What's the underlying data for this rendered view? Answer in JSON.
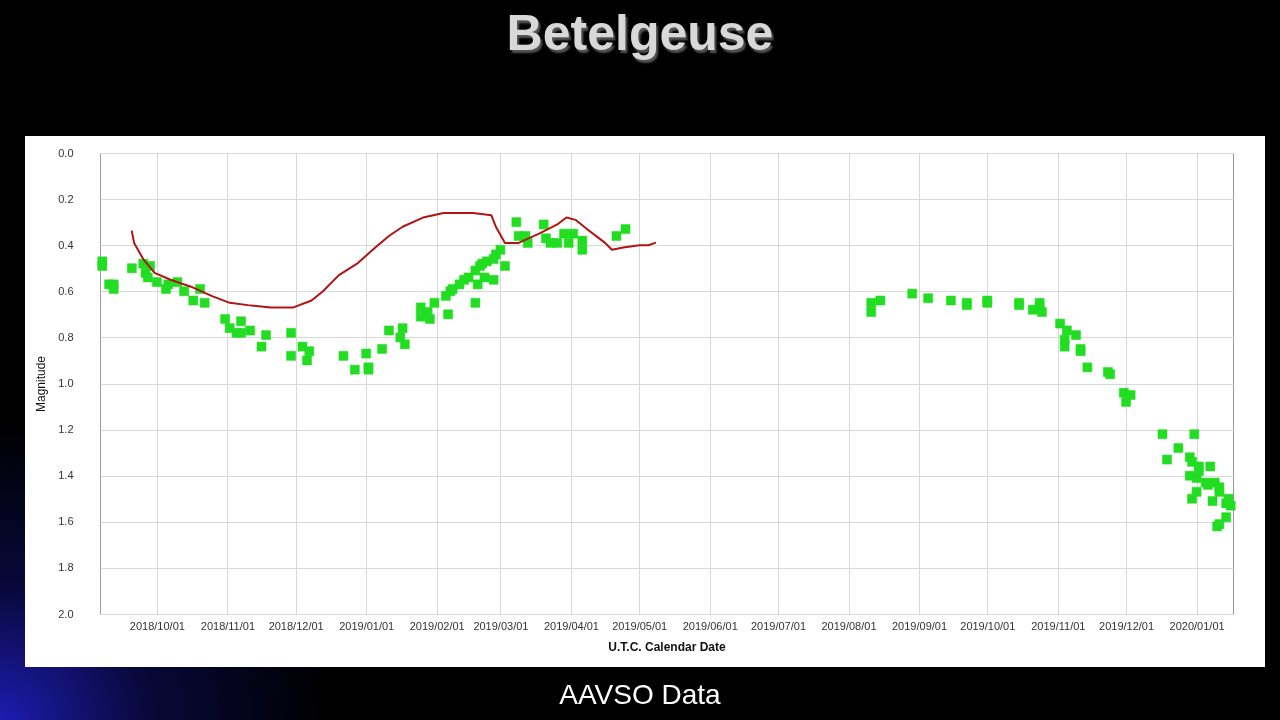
{
  "chart_data": {
    "type": "scatter",
    "title": "Betelgeuse",
    "xlabel": "U.T.C. Calendar Date",
    "ylabel": "Magnitude",
    "annotations": [
      "AAVSO Data"
    ],
    "xlim": [
      "2018-09-06",
      "2020-01-17"
    ],
    "xticks": [
      {
        "value": "2018-10-01",
        "label": "2018/10/01"
      },
      {
        "value": "2018-11-01",
        "label": "2018/11/01"
      },
      {
        "value": "2018-12-01",
        "label": "2018/12/01"
      },
      {
        "value": "2019-01-01",
        "label": "2019/01/01"
      },
      {
        "value": "2019-02-01",
        "label": "2019/02/01"
      },
      {
        "value": "2019-03-01",
        "label": "2019/03/01"
      },
      {
        "value": "2019-04-01",
        "label": "2019/04/01"
      },
      {
        "value": "2019-05-01",
        "label": "2019/05/01"
      },
      {
        "value": "2019-06-01",
        "label": "2019/06/01"
      },
      {
        "value": "2019-07-01",
        "label": "2019/07/01"
      },
      {
        "value": "2019-08-01",
        "label": "2019/08/01"
      },
      {
        "value": "2019-09-01",
        "label": "2019/09/01"
      },
      {
        "value": "2019-10-01",
        "label": "2019/10/01"
      },
      {
        "value": "2019-11-01",
        "label": "2019/11/01"
      },
      {
        "value": "2019-12-01",
        "label": "2019/12/01"
      },
      {
        "value": "2020-01-01",
        "label": "2020/01/01"
      }
    ],
    "ylim": [
      2.0,
      0.0
    ],
    "yticks": [
      {
        "value": 0,
        "label": "0.0"
      },
      0.2,
      0.4,
      0.6,
      0.8,
      {
        "value": 1,
        "label": "1.0"
      },
      1.2,
      1.4,
      1.6,
      1.8,
      {
        "value": 2,
        "label": "2.0"
      }
    ],
    "grid": true,
    "series": [
      {
        "color": "#22dd22",
        "marker": "square",
        "x": [
          "2018-09-07",
          "2018-09-07",
          "2018-09-10",
          "2018-09-12",
          "2018-09-12",
          "2018-09-20",
          "2018-09-25",
          "2018-09-26",
          "2018-09-27",
          "2018-09-28",
          "2018-10-01",
          "2018-10-05",
          "2018-10-06",
          "2018-10-10",
          "2018-10-13",
          "2018-10-17",
          "2018-10-20",
          "2018-10-22",
          "2018-10-31",
          "2018-11-02",
          "2018-11-05",
          "2018-11-07",
          "2018-11-07",
          "2018-11-11",
          "2018-11-16",
          "2018-11-18",
          "2018-11-29",
          "2018-11-29",
          "2018-12-04",
          "2018-12-06",
          "2018-12-07",
          "2018-12-22",
          "2018-12-27",
          "2019-01-01",
          "2019-01-02",
          "2019-01-02",
          "2019-01-08",
          "2019-01-11",
          "2019-01-16",
          "2019-01-17",
          "2019-01-18",
          "2019-01-25",
          "2019-01-25",
          "2019-01-28",
          "2019-01-29",
          "2019-01-31",
          "2019-02-05",
          "2019-02-06",
          "2019-02-07",
          "2019-02-08",
          "2019-02-11",
          "2019-02-13",
          "2019-02-15",
          "2019-02-18",
          "2019-02-18",
          "2019-02-19",
          "2019-02-20",
          "2019-02-21",
          "2019-02-22",
          "2019-02-23",
          "2019-02-26",
          "2019-02-26",
          "2019-02-27",
          "2019-03-01",
          "2019-03-03",
          "2019-03-08",
          "2019-03-09",
          "2019-03-12",
          "2019-03-13",
          "2019-03-20",
          "2019-03-21",
          "2019-03-23",
          "2019-03-26",
          "2019-03-29",
          "2019-03-31",
          "2019-04-02",
          "2019-04-06",
          "2019-04-06",
          "2019-04-21",
          "2019-04-25",
          "2019-08-11",
          "2019-08-11",
          "2019-08-15",
          "2019-08-29",
          "2019-09-05",
          "2019-09-15",
          "2019-09-22",
          "2019-09-22",
          "2019-10-01",
          "2019-10-01",
          "2019-10-15",
          "2019-10-15",
          "2019-10-21",
          "2019-10-24",
          "2019-10-24",
          "2019-10-25",
          "2019-11-02",
          "2019-11-04",
          "2019-11-04",
          "2019-11-05",
          "2019-11-09",
          "2019-11-11",
          "2019-11-11",
          "2019-11-14",
          "2019-11-23",
          "2019-11-24",
          "2019-11-30",
          "2019-12-01",
          "2019-12-03",
          "2019-12-17",
          "2019-12-19",
          "2019-12-24",
          "2019-12-29",
          "2019-12-29",
          "2019-12-30",
          "2019-12-30",
          "2019-12-31",
          "2020-01-01",
          "2020-01-01",
          "2020-01-02",
          "2020-01-02",
          "2020-01-05",
          "2020-01-06",
          "2020-01-07",
          "2020-01-08",
          "2020-01-09",
          "2020-01-10",
          "2020-01-11",
          "2020-01-11",
          "2020-01-11",
          "2020-01-14",
          "2020-01-14",
          "2020-01-15",
          "2020-01-16"
        ],
        "values": [
          0.47,
          0.49,
          0.57,
          0.57,
          0.59,
          0.5,
          0.48,
          0.52,
          0.54,
          0.49,
          0.56,
          0.59,
          0.57,
          0.56,
          0.6,
          0.64,
          0.59,
          0.65,
          0.72,
          0.76,
          0.78,
          0.73,
          0.78,
          0.77,
          0.84,
          0.79,
          0.78,
          0.88,
          0.84,
          0.9,
          0.86,
          0.88,
          0.94,
          0.87,
          0.93,
          0.94,
          0.85,
          0.77,
          0.8,
          0.76,
          0.83,
          0.67,
          0.71,
          0.69,
          0.72,
          0.65,
          0.62,
          0.7,
          0.6,
          0.59,
          0.57,
          0.55,
          0.54,
          0.51,
          0.65,
          0.57,
          0.49,
          0.48,
          0.54,
          0.47,
          0.46,
          0.55,
          0.44,
          0.42,
          0.49,
          0.3,
          0.36,
          0.36,
          0.39,
          0.31,
          0.37,
          0.39,
          0.39,
          0.35,
          0.39,
          0.35,
          0.38,
          0.42,
          0.36,
          0.33,
          0.65,
          0.69,
          0.64,
          0.61,
          0.63,
          0.64,
          0.65,
          0.66,
          0.64,
          0.65,
          0.65,
          0.66,
          0.68,
          0.65,
          0.67,
          0.69,
          0.74,
          0.81,
          0.84,
          0.77,
          0.79,
          0.85,
          0.86,
          0.93,
          0.95,
          0.96,
          1.04,
          1.08,
          1.05,
          1.22,
          1.33,
          1.28,
          1.32,
          1.4,
          1.34,
          1.5,
          1.22,
          1.41,
          1.47,
          1.36,
          1.38,
          1.43,
          1.44,
          1.36,
          1.51,
          1.43,
          1.62,
          1.45,
          1.47,
          1.61,
          1.52,
          1.58,
          1.5,
          1.53
        ]
      },
      {
        "type": "line",
        "color": "#b01414",
        "line_style": "solid",
        "x": [
          "2018-09-20",
          "2018-09-21",
          "2018-09-25",
          "2018-09-30",
          "2018-10-07",
          "2018-10-16",
          "2018-10-25",
          "2018-11-02",
          "2018-11-10",
          "2018-11-20",
          "2018-11-30",
          "2018-12-08",
          "2018-12-13",
          "2018-12-20",
          "2018-12-28",
          "2019-01-05",
          "2019-01-11",
          "2019-01-17",
          "2019-01-26",
          "2019-02-04",
          "2019-02-17",
          "2019-02-25",
          "2019-02-27",
          "2019-03-03",
          "2019-03-09",
          "2019-03-18",
          "2019-03-26",
          "2019-03-30",
          "2019-04-03",
          "2019-04-08",
          "2019-04-16",
          "2019-04-19",
          "2019-04-24",
          "2019-05-01",
          "2019-05-05",
          "2019-05-08"
        ],
        "values": [
          0.34,
          0.39,
          0.46,
          0.52,
          0.55,
          0.58,
          0.62,
          0.65,
          0.66,
          0.67,
          0.67,
          0.64,
          0.6,
          0.53,
          0.48,
          0.41,
          0.36,
          0.32,
          0.28,
          0.26,
          0.26,
          0.27,
          0.32,
          0.39,
          0.39,
          0.35,
          0.31,
          0.28,
          0.29,
          0.33,
          0.39,
          0.42,
          0.41,
          0.4,
          0.4,
          0.39
        ]
      }
    ]
  }
}
